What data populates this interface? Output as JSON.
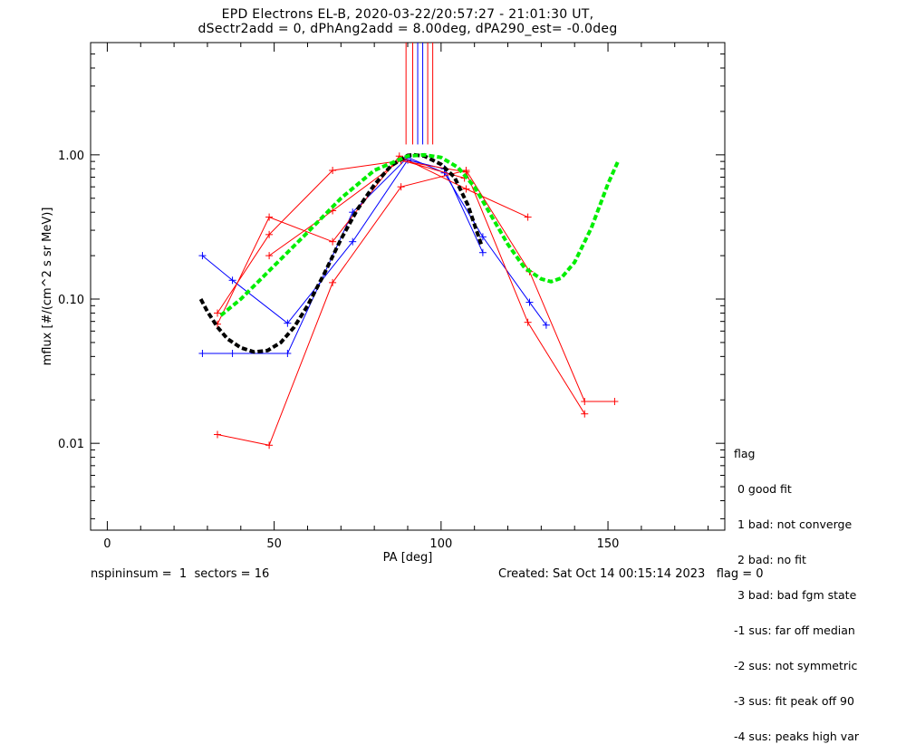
{
  "chart_data": {
    "type": "line",
    "title": "EPD Electrons EL-B, 2020-03-22/20:57:27 - 21:01:30 UT,",
    "subtitle": "dSectr2add = 0, dPhAng2add = 8.00deg, dPA290_est=  -0.0deg",
    "xlabel": "PA [deg]",
    "ylabel": "mflux [#/(cm^2 s sr MeV)]",
    "xlim": [
      -5,
      185
    ],
    "ylim": [
      0.0025,
      6.0
    ],
    "yscale": "log",
    "xticks": [
      0,
      50,
      100,
      150
    ],
    "xtick_labels": [
      "0",
      "50",
      "100",
      "150"
    ],
    "yticks": [
      0.01,
      0.1,
      1.0
    ],
    "ytick_labels": [
      "0.01",
      "0.10",
      "1.00"
    ],
    "grid": false,
    "series": [
      {
        "color": "#0000ff",
        "style": "line-plus",
        "x": [
          28.5,
          37.5,
          54,
          73.5,
          90,
          101,
          112.5
        ],
        "y": [
          0.2,
          0.135,
          0.068,
          0.25,
          0.92,
          0.8,
          0.21
        ]
      },
      {
        "color": "#0000ff",
        "style": "line-plus",
        "x": [
          28.5,
          37.5,
          54,
          73.5,
          90,
          101,
          112.5,
          126.5,
          131.5
        ],
        "y": [
          0.042,
          0.042,
          0.042,
          0.4,
          0.96,
          0.75,
          0.27,
          0.095,
          0.066
        ]
      },
      {
        "color": "#ff0000",
        "style": "line-plus",
        "x": [
          33,
          48.5,
          67.5,
          87.5,
          107.5,
          126
        ],
        "y": [
          0.067,
          0.37,
          0.25,
          0.98,
          0.58,
          0.37
        ]
      },
      {
        "color": "#ff0000",
        "style": "line-plus",
        "x": [
          33,
          48.5,
          67.5,
          88,
          107.5,
          126,
          143
        ],
        "y": [
          0.08,
          0.28,
          0.78,
          0.91,
          0.76,
          0.069,
          0.016
        ]
      },
      {
        "color": "#ff0000",
        "style": "line-plus",
        "x": [
          33,
          48.5,
          67.5,
          88,
          107.5,
          126.5,
          143,
          152
        ],
        "y": [
          0.0115,
          0.0097,
          0.13,
          0.6,
          0.78,
          0.155,
          0.0195,
          0.0195
        ]
      },
      {
        "color": "#ff0000",
        "style": "line-plus",
        "x": [
          48.5,
          67.5,
          88,
          107
        ],
        "y": [
          0.2,
          0.41,
          0.92,
          0.69
        ]
      },
      {
        "color": "#000000",
        "style": "dashed-thick",
        "x": [
          28,
          30,
          33,
          36,
          40,
          44,
          48,
          52,
          56,
          60,
          65,
          70,
          75,
          80,
          85,
          90,
          92,
          95,
          100,
          104,
          108,
          112
        ],
        "y": [
          0.1,
          0.082,
          0.064,
          0.053,
          0.046,
          0.043,
          0.044,
          0.05,
          0.064,
          0.09,
          0.15,
          0.26,
          0.42,
          0.62,
          0.84,
          0.99,
          1.0,
          0.98,
          0.86,
          0.7,
          0.45,
          0.24
        ]
      },
      {
        "color": "#00ee00",
        "style": "dashed-thick",
        "x": [
          34,
          40,
          50,
          60,
          70,
          80,
          90,
          95,
          100,
          105,
          110,
          115,
          120,
          125,
          130,
          133,
          136,
          140,
          145,
          150,
          153
        ],
        "y": [
          0.077,
          0.1,
          0.17,
          0.29,
          0.5,
          0.78,
          0.98,
          1.0,
          0.96,
          0.82,
          0.6,
          0.38,
          0.24,
          0.165,
          0.138,
          0.132,
          0.14,
          0.18,
          0.31,
          0.63,
          0.9
        ]
      }
    ],
    "vlines": [
      {
        "x": 89.5,
        "color": "#ff0000"
      },
      {
        "x": 91.5,
        "color": "#ff0000"
      },
      {
        "x": 93,
        "color": "#0000ff"
      },
      {
        "x": 94.5,
        "color": "#0000ff"
      },
      {
        "x": 96,
        "color": "#ff0000"
      },
      {
        "x": 97.5,
        "color": "#ff0000"
      }
    ]
  },
  "legend": {
    "header": "flag",
    "items": [
      " 0 good fit",
      " 1 bad: not converge",
      " 2 bad: no fit",
      " 3 bad: bad fgm state",
      "-1 sus: far off median",
      "-2 sus: not symmetric",
      "-3 sus: fit peak off 90",
      "-4 sus: peaks high var"
    ]
  },
  "footer": {
    "left": "nspininsum =  1  sectors = 16",
    "right": "Created: Sat Oct 14 00:15:14 2023   flag = 0"
  }
}
